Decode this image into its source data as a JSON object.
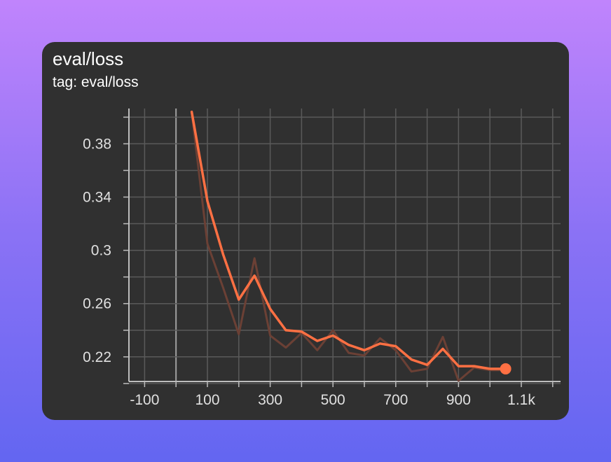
{
  "card": {
    "title": "eval/loss",
    "subtitle": "tag: eval/loss"
  },
  "colors": {
    "background_top": "#c084fc",
    "background_bottom": "#6366f1",
    "card": "#303030",
    "grid": "#5a5a5a",
    "axis": "#bdbdbd",
    "tick_text": "#e0e0e0",
    "line": "#ff7043",
    "raw_line": "#6b4035"
  },
  "chart_data": {
    "type": "line",
    "title": "eval/loss",
    "xlabel": "",
    "ylabel": "",
    "xlim": [
      -150,
      1225
    ],
    "ylim": [
      0.2015,
      0.4065
    ],
    "x_major_ticks": [
      -100,
      100,
      300,
      500,
      700,
      900,
      1100
    ],
    "x_tick_labels": [
      "-100",
      "100",
      "300",
      "500",
      "700",
      "900",
      "1.1k"
    ],
    "x_gridlines": [
      -100,
      0,
      100,
      200,
      300,
      400,
      500,
      600,
      700,
      800,
      900,
      1000,
      1100,
      1200
    ],
    "y_major_ticks": [
      0.22,
      0.26,
      0.3,
      0.34,
      0.38
    ],
    "y_tick_labels": [
      "0.22",
      "0.26",
      "0.3",
      "0.34",
      "0.38"
    ],
    "y_gridlines": [
      0.2,
      0.22,
      0.24,
      0.26,
      0.28,
      0.3,
      0.32,
      0.34,
      0.36,
      0.38,
      0.4
    ],
    "grid": true,
    "series": [
      {
        "role": "raw",
        "x": [
          50,
          100,
          150,
          200,
          250,
          300,
          350,
          400,
          450,
          500,
          550,
          600,
          650,
          700,
          750,
          800,
          850,
          900,
          950,
          1000,
          1050
        ],
        "values": [
          0.404,
          0.305,
          0.272,
          0.237,
          0.294,
          0.236,
          0.227,
          0.238,
          0.225,
          0.24,
          0.223,
          0.221,
          0.234,
          0.225,
          0.209,
          0.211,
          0.235,
          0.202,
          0.212,
          0.21,
          0.21
        ]
      },
      {
        "role": "smoothed",
        "x": [
          50,
          100,
          150,
          200,
          250,
          300,
          350,
          400,
          450,
          500,
          550,
          600,
          650,
          700,
          750,
          800,
          850,
          900,
          950,
          1000,
          1050
        ],
        "values": [
          0.404,
          0.337,
          0.297,
          0.263,
          0.281,
          0.256,
          0.24,
          0.239,
          0.232,
          0.236,
          0.229,
          0.225,
          0.23,
          0.228,
          0.218,
          0.214,
          0.226,
          0.213,
          0.213,
          0.211,
          0.211
        ]
      }
    ]
  }
}
